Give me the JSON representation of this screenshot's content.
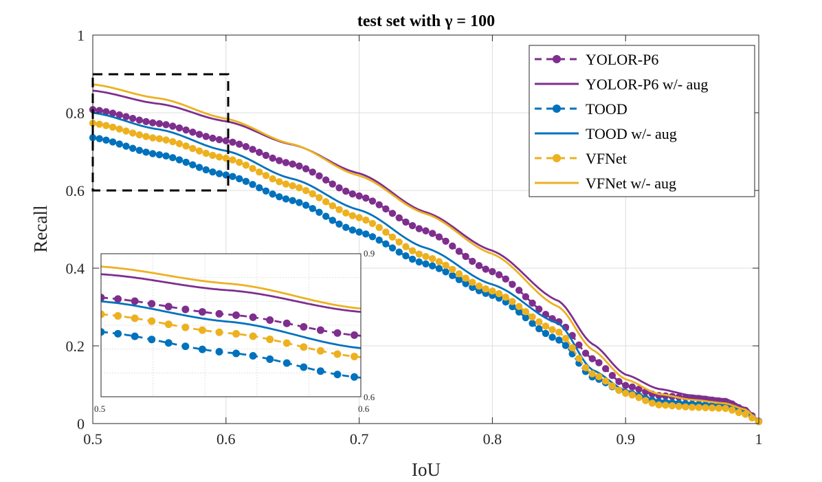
{
  "chart_data": {
    "type": "line",
    "title": "test set with γ = 100",
    "xlabel": "IoU",
    "ylabel": "Recall",
    "xlim": [
      0.5,
      1.0
    ],
    "ylim": [
      0,
      1
    ],
    "x_ticks": [
      "0.5",
      "0.6",
      "0.7",
      "0.8",
      "0.9",
      "1"
    ],
    "y_ticks": [
      "0",
      "0.2",
      "0.4",
      "0.6",
      "0.8",
      "1"
    ],
    "grid": true,
    "legend_position": "top-right",
    "colors": {
      "purple": "#7E2F8E",
      "blue": "#0072BD",
      "yellow": "#EDB120"
    },
    "series": [
      {
        "name": "YOLOR-P6",
        "color": "#7E2F8E",
        "style": "dashed-markers",
        "x": [
          0.5,
          0.55,
          0.6,
          0.65,
          0.7,
          0.75,
          0.8,
          0.85,
          0.875,
          0.9,
          0.925,
          0.95,
          0.975,
          0.99,
          1.0
        ],
        "y": [
          0.808,
          0.772,
          0.728,
          0.668,
          0.586,
          0.496,
          0.391,
          0.262,
          0.167,
          0.098,
          0.072,
          0.066,
          0.057,
          0.034,
          0.006
        ]
      },
      {
        "name": "YOLOR-P6 w/- aug",
        "color": "#7E2F8E",
        "style": "solid",
        "x": [
          0.5,
          0.55,
          0.6,
          0.65,
          0.7,
          0.75,
          0.8,
          0.85,
          0.875,
          0.9,
          0.925,
          0.95,
          0.975,
          0.99,
          1.0
        ],
        "y": [
          0.857,
          0.823,
          0.778,
          0.718,
          0.644,
          0.544,
          0.445,
          0.315,
          0.205,
          0.126,
          0.089,
          0.072,
          0.063,
          0.04,
          0.008
        ]
      },
      {
        "name": "TOOD",
        "color": "#0072BD",
        "style": "dashed-markers",
        "x": [
          0.5,
          0.55,
          0.6,
          0.65,
          0.7,
          0.75,
          0.8,
          0.85,
          0.875,
          0.9,
          0.925,
          0.95,
          0.975,
          0.99,
          1.0
        ],
        "y": [
          0.736,
          0.692,
          0.64,
          0.574,
          0.493,
          0.411,
          0.33,
          0.215,
          0.12,
          0.08,
          0.056,
          0.05,
          0.044,
          0.026,
          0.005
        ]
      },
      {
        "name": "TOOD w/- aug",
        "color": "#0072BD",
        "style": "solid",
        "x": [
          0.5,
          0.55,
          0.6,
          0.65,
          0.7,
          0.75,
          0.8,
          0.85,
          0.875,
          0.9,
          0.925,
          0.95,
          0.975,
          0.99,
          1.0
        ],
        "y": [
          0.8,
          0.757,
          0.702,
          0.63,
          0.55,
          0.452,
          0.358,
          0.257,
          0.138,
          0.085,
          0.059,
          0.053,
          0.047,
          0.03,
          0.006
        ]
      },
      {
        "name": "VFNet",
        "color": "#EDB120",
        "style": "dashed-markers",
        "x": [
          0.5,
          0.55,
          0.6,
          0.65,
          0.7,
          0.75,
          0.8,
          0.85,
          0.875,
          0.9,
          0.925,
          0.95,
          0.975,
          0.99,
          1.0
        ],
        "y": [
          0.773,
          0.733,
          0.683,
          0.612,
          0.53,
          0.43,
          0.341,
          0.235,
          0.128,
          0.078,
          0.048,
          0.042,
          0.039,
          0.024,
          0.005
        ]
      },
      {
        "name": "VFNet w/- aug",
        "color": "#EDB120",
        "style": "solid",
        "x": [
          0.5,
          0.55,
          0.6,
          0.65,
          0.7,
          0.75,
          0.8,
          0.85,
          0.875,
          0.9,
          0.925,
          0.95,
          0.975,
          0.99,
          1.0
        ],
        "y": [
          0.873,
          0.837,
          0.785,
          0.719,
          0.638,
          0.54,
          0.437,
          0.3,
          0.19,
          0.114,
          0.076,
          0.061,
          0.052,
          0.036,
          0.007
        ]
      }
    ],
    "inset": {
      "xlim": [
        0.5,
        0.6
      ],
      "ylim": [
        0.6,
        0.9
      ],
      "x_tick_labels": [
        "0.5",
        "0.6"
      ],
      "y_tick_labels": [
        "0.6",
        "0.9"
      ]
    }
  }
}
